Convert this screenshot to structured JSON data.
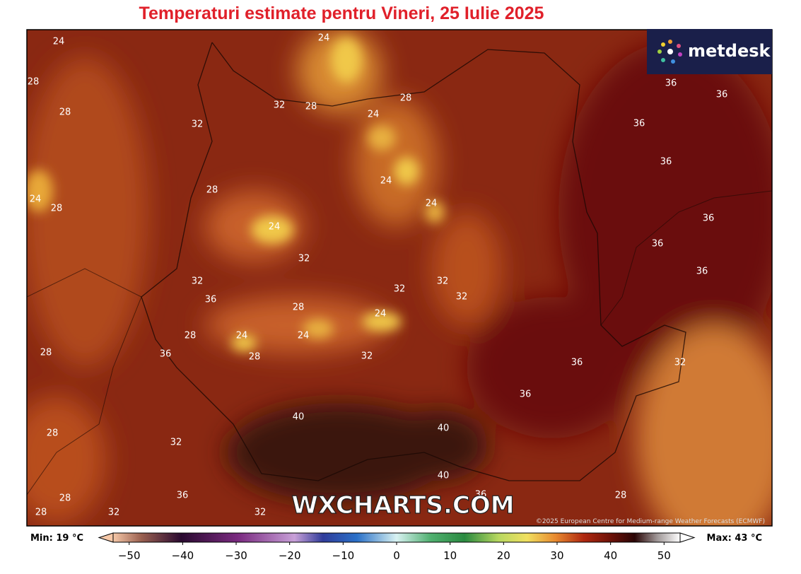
{
  "title": "Temperaturi estimate pentru Vineri, 25 Iulie 2025",
  "logo": "metdesk",
  "watermark": "WXCHARTS.COM",
  "credit": "©2025 European Centre for Medium-range Weather Forecasts (ECMWF)",
  "contour_labels": [
    24,
    24,
    28,
    28,
    32,
    28,
    24,
    28,
    32,
    36,
    36,
    36,
    36,
    24,
    28,
    24,
    28,
    24,
    24,
    36,
    36,
    36,
    32,
    32,
    36,
    32,
    32,
    32,
    28,
    24,
    24,
    24,
    28,
    28,
    36,
    28,
    32,
    36,
    32,
    36,
    40,
    40,
    28,
    32,
    40,
    36,
    36,
    28,
    28,
    28,
    32,
    32
  ],
  "colorbar": {
    "min_label": "Min: 19 °C",
    "max_label": "Max: 43 °C",
    "xlim": [
      -53,
      53
    ],
    "xticks": [
      {
        "value": -50,
        "label": "−50"
      },
      {
        "value": -40,
        "label": "−40"
      },
      {
        "value": -30,
        "label": "−30"
      },
      {
        "value": -20,
        "label": "−20"
      },
      {
        "value": -10,
        "label": "−10"
      },
      0,
      10,
      20,
      30,
      40,
      50
    ]
  }
}
